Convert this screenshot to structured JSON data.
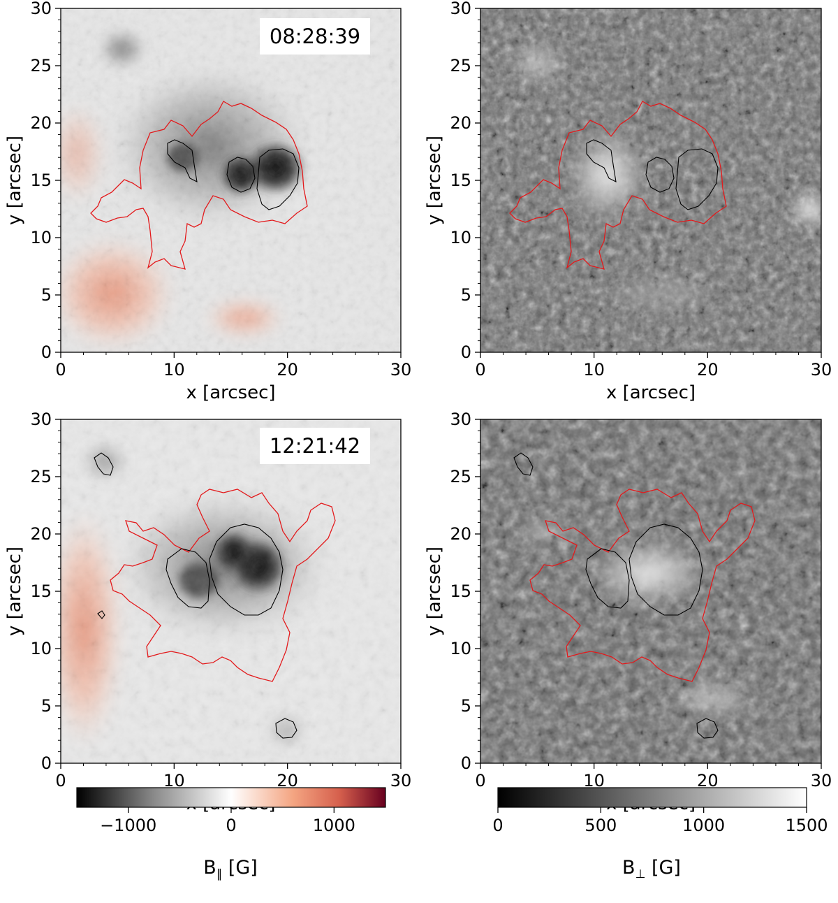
{
  "panels": [
    {
      "id": "top-left",
      "field": "B_parallel",
      "timestamp": "08:28:39",
      "xlabel": "x [arcsec]",
      "ylabel": "y [arcsec]",
      "xticks": [
        "0",
        "10",
        "20",
        "30"
      ],
      "yticks": [
        "0",
        "5",
        "10",
        "15",
        "20",
        "25",
        "30"
      ]
    },
    {
      "id": "top-right",
      "field": "B_perp",
      "timestamp": "",
      "xlabel": "x [arcsec]",
      "ylabel": "y [arcsec]",
      "xticks": [
        "0",
        "10",
        "20",
        "30"
      ],
      "yticks": [
        "0",
        "5",
        "10",
        "15",
        "20",
        "25",
        "30"
      ]
    },
    {
      "id": "bottom-left",
      "field": "B_parallel",
      "timestamp": "12:21:42",
      "xlabel": "x [arcsec]",
      "ylabel": "y [arcsec]",
      "xticks": [
        "0",
        "10",
        "20",
        "30"
      ],
      "yticks": [
        "0",
        "5",
        "10",
        "15",
        "20",
        "25",
        "30"
      ]
    },
    {
      "id": "bottom-right",
      "field": "B_perp",
      "timestamp": "",
      "xlabel": "x [arcsec]",
      "ylabel": "y [arcsec]",
      "xticks": [
        "0",
        "10",
        "20",
        "30"
      ],
      "yticks": [
        "0",
        "5",
        "10",
        "15",
        "20",
        "25",
        "30"
      ]
    }
  ],
  "colorbars": {
    "parallel": {
      "label_main": "B",
      "label_sub": "∥",
      "label_unit": " [G]",
      "ticks": [
        "−1000",
        "0",
        "1000"
      ],
      "range": [
        -1500,
        1500
      ],
      "colors": [
        "#000000",
        "#ffffff",
        "#67001f"
      ]
    },
    "perp": {
      "label_main": "B",
      "label_sub": "⊥",
      "label_unit": " [G]",
      "ticks": [
        "0",
        "500",
        "1000",
        "1500"
      ],
      "range": [
        0,
        1500
      ],
      "colors": [
        "#000000",
        "#ffffff"
      ]
    }
  },
  "contours": {
    "penumbra_color": "#e31a1c",
    "umbra_color": "#000000"
  }
}
